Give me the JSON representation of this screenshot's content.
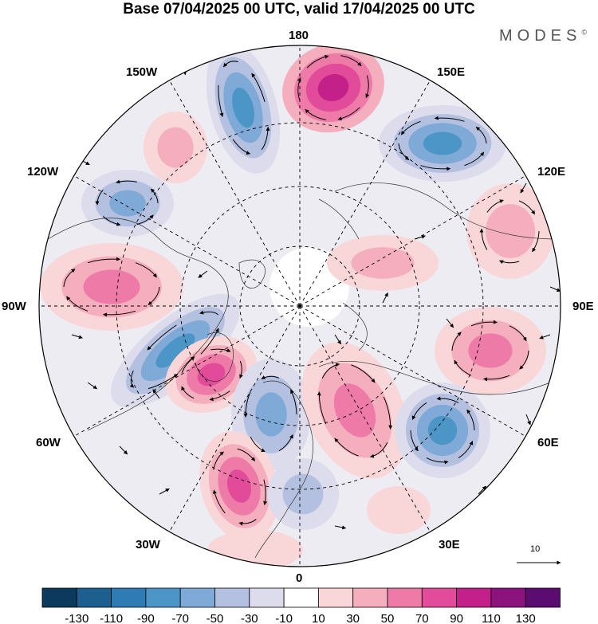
{
  "title": "Base 07/04/2025 00 UTC, valid 17/04/2025 00 UTC",
  "brand": "MODES",
  "brand_mark": "©",
  "map": {
    "projection": "north-polar-stereographic",
    "longitude_labels": {
      "top": "180",
      "bottom": "0",
      "left": "90W",
      "right": "90E",
      "upper_left_1": "150W",
      "upper_left_2": "120W",
      "lower_left_1": "60W",
      "lower_left_2": "30W",
      "upper_right_1": "150E",
      "upper_right_2": "120E",
      "lower_right_1": "60E",
      "lower_right_2": "30E"
    },
    "reference_vector_value": "10",
    "colors": {
      "coast": "#333333",
      "graticule": "#000000",
      "streamline": "#000000"
    }
  },
  "colorbar": {
    "tick_labels": [
      "-130",
      "-110",
      "-90",
      "-70",
      "-50",
      "-30",
      "-10",
      "10",
      "30",
      "50",
      "70",
      "90",
      "110",
      "130"
    ],
    "colors": [
      "#0b3a5c",
      "#1d5f8f",
      "#2e7cb3",
      "#4b95c7",
      "#7fa9d6",
      "#b4c0df",
      "#dcdcec",
      "#ffffff",
      "#f9d6d8",
      "#f4aebe",
      "#ee7aa8",
      "#e14b9a",
      "#c4208a",
      "#8c127d",
      "#5b0c70"
    ]
  }
}
